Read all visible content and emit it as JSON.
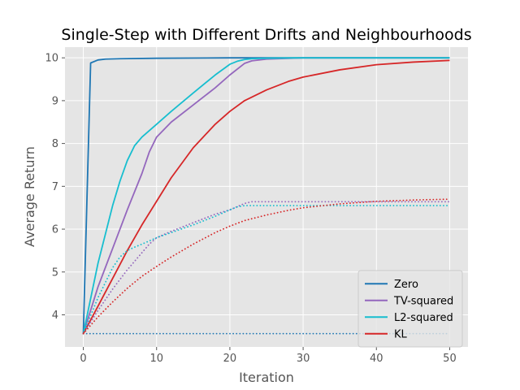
{
  "chart_data": {
    "type": "line",
    "title": "Single-Step with Different Drifts and Neighbourhoods",
    "xlabel": "Iteration",
    "ylabel": "Average Return",
    "xlim": [
      -2.5,
      52.5
    ],
    "ylim": [
      3.25,
      10.25
    ],
    "xticks": [
      0,
      10,
      20,
      30,
      40,
      50
    ],
    "yticks": [
      4,
      5,
      6,
      7,
      8,
      9,
      10
    ],
    "grid": true,
    "legend_position": "lower right",
    "series": [
      {
        "name": "Zero",
        "color": "#1f77b4",
        "style": "solid",
        "x": [
          0,
          1,
          2,
          3,
          5,
          10,
          20,
          30,
          40,
          50
        ],
        "y": [
          3.56,
          9.88,
          9.95,
          9.97,
          9.98,
          9.99,
          10.0,
          10.0,
          10.0,
          10.0
        ]
      },
      {
        "name": "TV-squared",
        "color": "#9467bd",
        "style": "solid",
        "x": [
          0,
          2,
          4,
          6,
          8,
          9,
          10,
          12,
          15,
          18,
          20,
          22,
          23,
          25,
          30,
          40,
          50
        ],
        "y": [
          3.56,
          4.65,
          5.55,
          6.45,
          7.3,
          7.8,
          8.15,
          8.5,
          8.9,
          9.3,
          9.6,
          9.87,
          9.93,
          9.97,
          10.0,
          10.0,
          10.0
        ]
      },
      {
        "name": "L2-squared",
        "color": "#17becf",
        "style": "solid",
        "x": [
          0,
          2,
          4,
          5,
          6,
          7,
          8,
          10,
          12,
          15,
          18,
          20,
          21,
          22,
          23,
          25,
          30,
          40,
          50
        ],
        "y": [
          3.56,
          5.2,
          6.55,
          7.12,
          7.6,
          7.95,
          8.15,
          8.45,
          8.75,
          9.18,
          9.6,
          9.85,
          9.92,
          9.96,
          9.98,
          9.99,
          10.0,
          10.0,
          10.0
        ]
      },
      {
        "name": "KL",
        "color": "#d62728",
        "style": "solid",
        "x": [
          0,
          2,
          4,
          6,
          8,
          10,
          12,
          15,
          18,
          20,
          22,
          25,
          28,
          30,
          35,
          40,
          45,
          50
        ],
        "y": [
          3.56,
          4.2,
          4.85,
          5.5,
          6.1,
          6.65,
          7.2,
          7.9,
          8.45,
          8.75,
          9.0,
          9.25,
          9.45,
          9.55,
          9.72,
          9.84,
          9.9,
          9.94
        ]
      },
      {
        "color": "#1f77b4",
        "style": "dotted",
        "x": [
          0,
          10,
          20,
          30,
          40,
          50
        ],
        "y": [
          3.56,
          3.56,
          3.56,
          3.56,
          3.56,
          3.56
        ]
      },
      {
        "color": "#9467bd",
        "style": "dotted",
        "x": [
          0,
          2,
          4,
          6,
          8,
          9,
          10,
          12,
          15,
          18,
          20,
          22,
          23,
          25,
          30,
          40,
          50
        ],
        "y": [
          3.56,
          4.1,
          4.6,
          5.05,
          5.45,
          5.65,
          5.8,
          5.95,
          6.15,
          6.35,
          6.45,
          6.6,
          6.64,
          6.64,
          6.64,
          6.64,
          6.64
        ]
      },
      {
        "color": "#17becf",
        "style": "dotted",
        "x": [
          0,
          2,
          4,
          5,
          6,
          7,
          8,
          10,
          12,
          15,
          18,
          20,
          21,
          22,
          25,
          30,
          40,
          50
        ],
        "y": [
          3.56,
          4.4,
          5.1,
          5.35,
          5.5,
          5.58,
          5.65,
          5.8,
          5.92,
          6.1,
          6.3,
          6.45,
          6.52,
          6.55,
          6.55,
          6.55,
          6.55,
          6.55
        ]
      },
      {
        "color": "#d62728",
        "style": "dotted",
        "x": [
          0,
          2,
          4,
          6,
          8,
          10,
          12,
          15,
          18,
          20,
          22,
          25,
          28,
          30,
          35,
          40,
          45,
          50
        ],
        "y": [
          3.56,
          3.95,
          4.3,
          4.62,
          4.9,
          5.13,
          5.35,
          5.65,
          5.92,
          6.07,
          6.2,
          6.33,
          6.44,
          6.5,
          6.59,
          6.65,
          6.68,
          6.7
        ]
      }
    ]
  }
}
